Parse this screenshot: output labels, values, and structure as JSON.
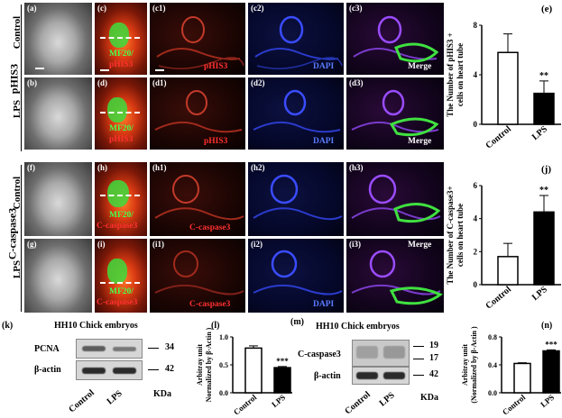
{
  "row_groups": [
    {
      "name": "pHIS3",
      "conditions": [
        "Control",
        "LPS"
      ]
    },
    {
      "name": "C-caspase3",
      "conditions": [
        "Control",
        "LPS"
      ]
    }
  ],
  "panels": {
    "a": "(a)",
    "b": "(b)",
    "c": "(c)",
    "d": "(d)",
    "c1": "(c1)",
    "c2": "(c2)",
    "c3": "(c3)",
    "d1": "(d1)",
    "d2": "(d2)",
    "d3": "(d3)",
    "e": "(e)",
    "f": "(f)",
    "g": "(g)",
    "h": "(h)",
    "i": "(i)",
    "h1": "(h1)",
    "h2": "(h2)",
    "h3": "(h3)",
    "i1": "(i1)",
    "i2": "(i2)",
    "i3": "(i3)",
    "j": "(j)",
    "k": "(k)",
    "l": "(l)",
    "m": "(m)",
    "n": "(n)"
  },
  "stains": {
    "mf20": "MF20/",
    "phis3": "pHIS3",
    "ccasp3": "C-caspase3",
    "dapi": "DAPI",
    "merge": "Merge"
  },
  "westerns": {
    "title": "HH10 Chick embryos",
    "k": {
      "proteins": [
        "PCNA",
        "β-actin"
      ],
      "kda": [
        "34",
        "42"
      ],
      "lanes": [
        "Control",
        "LPS"
      ],
      "unit": "KDa"
    },
    "m": {
      "proteins": [
        "C-caspase3",
        "β-actin"
      ],
      "kda": [
        "19",
        "17",
        "42"
      ],
      "lanes": [
        "Control",
        "LPS"
      ],
      "unit": "KDa"
    }
  },
  "chart_data": [
    {
      "id": "e",
      "type": "bar",
      "categories": [
        "Control",
        "LPS"
      ],
      "values": [
        5.8,
        2.5
      ],
      "errors": [
        1.5,
        1.0
      ],
      "fills": [
        "#ffffff",
        "#000000"
      ],
      "ylabel": "The Number of pHIS3 + cells on heart tube",
      "ylim": [
        0,
        8
      ],
      "yticks": [
        "0",
        "4",
        "8"
      ],
      "annotations": [
        {
          "category": "LPS",
          "text": "**"
        }
      ]
    },
    {
      "id": "j",
      "type": "bar",
      "categories": [
        "Control",
        "LPS"
      ],
      "values": [
        1.7,
        4.4
      ],
      "errors": [
        0.8,
        1.0
      ],
      "fills": [
        "#ffffff",
        "#000000"
      ],
      "ylabel": "The Number of C-caspase3+ cells on heart tube",
      "ylim": [
        0,
        6
      ],
      "yticks": [
        "0",
        "2",
        "4",
        "6"
      ],
      "annotations": [
        {
          "category": "LPS",
          "text": "**"
        }
      ]
    },
    {
      "id": "l",
      "type": "bar",
      "categories": [
        "Control",
        "LPS"
      ],
      "values": [
        0.8,
        0.45
      ],
      "errors": [
        0.04,
        0.02
      ],
      "fills": [
        "#ffffff",
        "#000000"
      ],
      "ylabel": "Arbitray unit Normalized by β-Actin )",
      "ylim": [
        0,
        1.0
      ],
      "yticks": [
        "0.0",
        "0.5",
        "1.0"
      ],
      "annotations": [
        {
          "category": "LPS",
          "text": "***"
        }
      ]
    },
    {
      "id": "n",
      "type": "bar",
      "categories": [
        "Control",
        "LPS"
      ],
      "values": [
        0.42,
        0.6
      ],
      "errors": [
        0.01,
        0.015
      ],
      "fills": [
        "#ffffff",
        "#000000"
      ],
      "ylabel": "Arbitray unit (Normalized by β-Actin )",
      "ylim": [
        0,
        0.8
      ],
      "yticks": [
        "0.0",
        "0.4",
        "0.8"
      ],
      "annotations": [
        {
          "category": "LPS",
          "text": "***"
        }
      ]
    }
  ]
}
